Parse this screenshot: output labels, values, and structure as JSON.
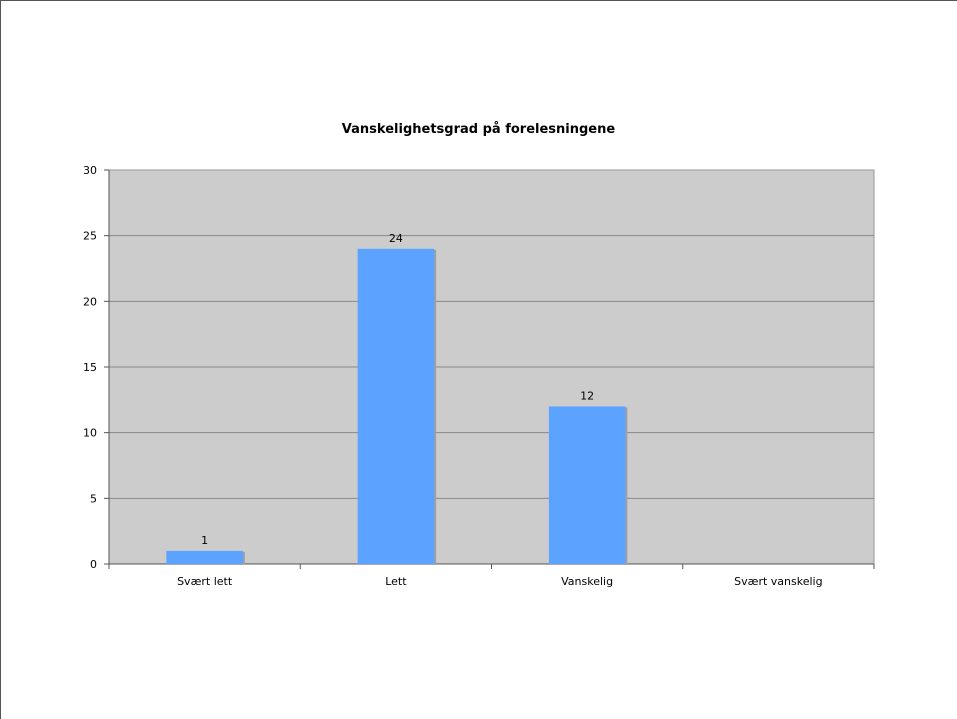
{
  "chart_data": {
    "type": "bar",
    "title": "Vanskelighetsgrad på forelesningene",
    "categories": [
      "Svært lett",
      "Lett",
      "Vanskelig",
      "Svært vanskelig"
    ],
    "values": [
      1,
      24,
      12,
      0
    ],
    "data_labels": [
      "1",
      "24",
      "12",
      ""
    ],
    "xlabel": "",
    "ylabel": "",
    "ylim": [
      0,
      30
    ],
    "yticks": [
      0,
      5,
      10,
      15,
      20,
      25,
      30
    ],
    "grid": true,
    "legend": "none",
    "colors": {
      "bar": "#5ba3ff",
      "plot_background": "#cccccc",
      "gridline": "#888888"
    }
  }
}
